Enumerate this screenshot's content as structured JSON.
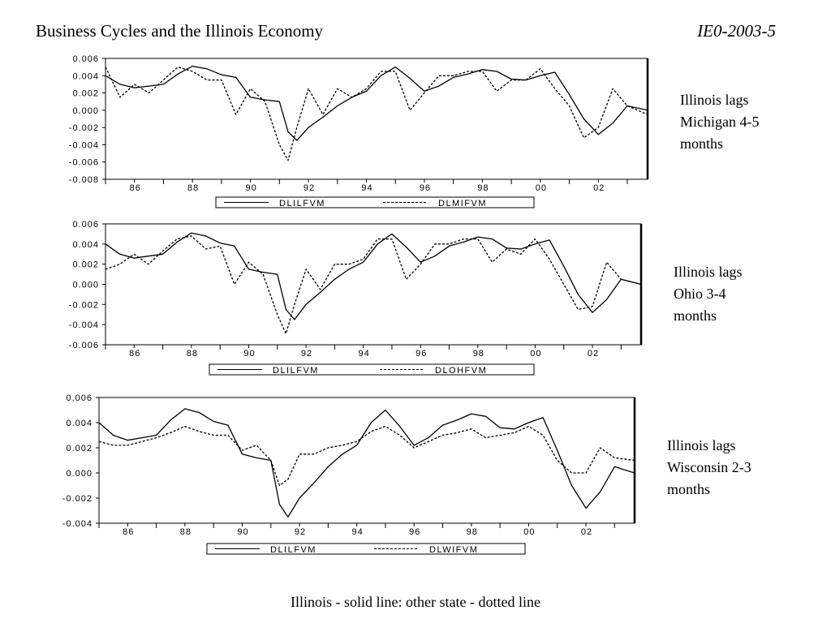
{
  "header": {
    "title": "Business Cycles and the Illinois Economy",
    "code": "IE0-2003-5"
  },
  "footer": {
    "caption": "Illinois - solid line: other state - dotted line"
  },
  "notes": [
    [
      "Illinois lags",
      "Michigan 4-5",
      "months"
    ],
    [
      "Illinois lags",
      "Ohio 3-4",
      "months"
    ],
    [
      "Illinois lags",
      "Wisconsin 2-3",
      "months"
    ]
  ],
  "chart_data": [
    {
      "type": "line",
      "x_tick_labels": [
        "86",
        "88",
        "90",
        "92",
        "94",
        "96",
        "98",
        "00",
        "02"
      ],
      "x_ticks": [
        1986,
        1988,
        1990,
        1992,
        1994,
        1996,
        1998,
        2000,
        2002
      ],
      "xlim": [
        1985.0,
        2003.7
      ],
      "ylim": [
        -0.008,
        0.006
      ],
      "y_ticks": [
        0.006,
        0.004,
        0.002,
        0.0,
        -0.002,
        -0.004,
        -0.006,
        -0.008
      ],
      "y_tick_labels": [
        "0.006",
        "0.004",
        "0.002",
        "0.000",
        "-0.002",
        "-0.004",
        "-0.006",
        "-0.008"
      ],
      "legend_position": "bottom",
      "series": [
        {
          "name": "DLILFVM",
          "style": "solid",
          "x": [
            1985.0,
            1985.5,
            1986.0,
            1986.5,
            1987.0,
            1987.5,
            1988.0,
            1988.5,
            1989.0,
            1989.5,
            1990.0,
            1990.5,
            1991.0,
            1991.3,
            1991.6,
            1992.0,
            1992.5,
            1993.0,
            1993.5,
            1994.0,
            1994.5,
            1995.0,
            1995.5,
            1996.0,
            1996.5,
            1997.0,
            1997.5,
            1998.0,
            1998.5,
            1999.0,
            1999.5,
            2000.0,
            2000.5,
            2001.0,
            2001.5,
            2002.0,
            2002.5,
            2003.0,
            2003.7
          ],
          "y": [
            0.004,
            0.003,
            0.0026,
            0.0028,
            0.003,
            0.0042,
            0.0051,
            0.0048,
            0.0041,
            0.0038,
            0.0015,
            0.0012,
            0.001,
            -0.0025,
            -0.0035,
            -0.002,
            -0.0008,
            0.0005,
            0.0015,
            0.0022,
            0.004,
            0.005,
            0.0037,
            0.0022,
            0.0028,
            0.0038,
            0.0042,
            0.0047,
            0.0045,
            0.0036,
            0.0035,
            0.004,
            0.0044,
            0.0018,
            -0.001,
            -0.0028,
            -0.0015,
            0.0005,
            0.0
          ]
        },
        {
          "name": "DLMIFVM",
          "style": "dotted",
          "x": [
            1985.0,
            1985.5,
            1986.0,
            1986.5,
            1987.0,
            1987.5,
            1988.0,
            1988.5,
            1989.0,
            1989.5,
            1990.0,
            1990.5,
            1991.0,
            1991.3,
            1991.6,
            1992.0,
            1992.5,
            1993.0,
            1993.5,
            1994.0,
            1994.5,
            1995.0,
            1995.5,
            1996.0,
            1996.5,
            1997.0,
            1997.5,
            1998.0,
            1998.5,
            1999.0,
            1999.5,
            2000.0,
            2000.5,
            2001.0,
            2001.5,
            2002.0,
            2002.5,
            2003.0,
            2003.7
          ],
          "y": [
            0.005,
            0.0015,
            0.003,
            0.002,
            0.0035,
            0.005,
            0.0045,
            0.0035,
            0.0035,
            -0.0005,
            0.0025,
            0.001,
            -0.004,
            -0.0058,
            -0.002,
            0.0025,
            -0.0005,
            0.0025,
            0.0015,
            0.0025,
            0.0045,
            0.0045,
            0.0,
            0.002,
            0.004,
            0.004,
            0.0045,
            0.0045,
            0.0022,
            0.0035,
            0.0035,
            0.0048,
            0.0025,
            0.0005,
            -0.0032,
            -0.002,
            0.0025,
            0.0005,
            -0.0005
          ]
        }
      ]
    },
    {
      "type": "line",
      "x_tick_labels": [
        "86",
        "88",
        "90",
        "92",
        "94",
        "96",
        "98",
        "00",
        "02"
      ],
      "x_ticks": [
        1986,
        1988,
        1990,
        1992,
        1994,
        1996,
        1998,
        2000,
        2002
      ],
      "xlim": [
        1985.0,
        2003.7
      ],
      "ylim": [
        -0.006,
        0.006
      ],
      "y_ticks": [
        0.006,
        0.004,
        0.002,
        0.0,
        -0.002,
        -0.004,
        -0.006
      ],
      "y_tick_labels": [
        "0.006",
        "0.004",
        "0.002",
        "0.000",
        "-0.002",
        "-0.004",
        "-0.006"
      ],
      "legend_position": "bottom",
      "series": [
        {
          "name": "DLILFVM",
          "style": "solid",
          "x": [
            1985.0,
            1985.5,
            1986.0,
            1986.5,
            1987.0,
            1987.5,
            1988.0,
            1988.5,
            1989.0,
            1989.5,
            1990.0,
            1990.5,
            1991.0,
            1991.3,
            1991.6,
            1992.0,
            1992.5,
            1993.0,
            1993.5,
            1994.0,
            1994.5,
            1995.0,
            1995.5,
            1996.0,
            1996.5,
            1997.0,
            1997.5,
            1998.0,
            1998.5,
            1999.0,
            1999.5,
            2000.0,
            2000.5,
            2001.0,
            2001.5,
            2002.0,
            2002.5,
            2003.0,
            2003.7
          ],
          "y": [
            0.004,
            0.003,
            0.0026,
            0.0028,
            0.003,
            0.0042,
            0.0051,
            0.0048,
            0.0041,
            0.0038,
            0.0015,
            0.0012,
            0.001,
            -0.0025,
            -0.0035,
            -0.002,
            -0.0008,
            0.0005,
            0.0015,
            0.0022,
            0.004,
            0.005,
            0.0037,
            0.0022,
            0.0028,
            0.0038,
            0.0042,
            0.0047,
            0.0045,
            0.0036,
            0.0035,
            0.004,
            0.0044,
            0.0018,
            -0.001,
            -0.0028,
            -0.0015,
            0.0005,
            0.0
          ]
        },
        {
          "name": "DLOHFVM",
          "style": "dotted",
          "x": [
            1985.0,
            1985.5,
            1986.0,
            1986.5,
            1987.0,
            1987.5,
            1988.0,
            1988.5,
            1989.0,
            1989.5,
            1990.0,
            1990.5,
            1991.0,
            1991.3,
            1991.6,
            1992.0,
            1992.5,
            1993.0,
            1993.5,
            1994.0,
            1994.5,
            1995.0,
            1995.5,
            1996.0,
            1996.5,
            1997.0,
            1997.5,
            1998.0,
            1998.5,
            1999.0,
            1999.5,
            2000.0,
            2000.5,
            2001.0,
            2001.5,
            2002.0,
            2002.5,
            2003.0,
            2003.7
          ],
          "y": [
            0.0015,
            0.002,
            0.003,
            0.002,
            0.0033,
            0.0045,
            0.0048,
            0.0035,
            0.0038,
            0.0,
            0.0022,
            0.001,
            -0.003,
            -0.0049,
            -0.002,
            0.0015,
            -0.0005,
            0.002,
            0.002,
            0.0025,
            0.0045,
            0.0045,
            0.0005,
            0.002,
            0.004,
            0.004,
            0.0045,
            0.0045,
            0.0022,
            0.0035,
            0.003,
            0.0045,
            0.0025,
            0.0,
            -0.0025,
            -0.0022,
            0.0022,
            0.0005,
            0.0
          ]
        }
      ]
    },
    {
      "type": "line",
      "x_tick_labels": [
        "86",
        "88",
        "90",
        "92",
        "94",
        "96",
        "98",
        "00",
        "02"
      ],
      "x_ticks": [
        1986,
        1988,
        1990,
        1992,
        1994,
        1996,
        1998,
        2000,
        2002
      ],
      "xlim": [
        1985.0,
        2003.7
      ],
      "ylim": [
        -0.004,
        0.006
      ],
      "y_ticks": [
        0.006,
        0.004,
        0.002,
        0.0,
        -0.002,
        -0.004
      ],
      "y_tick_labels": [
        "0.006",
        "0.004",
        "0.002",
        "0.000",
        "-0.002",
        "-0.004"
      ],
      "legend_position": "bottom",
      "series": [
        {
          "name": "DLILFVM",
          "style": "solid",
          "x": [
            1985.0,
            1985.5,
            1986.0,
            1986.5,
            1987.0,
            1987.5,
            1988.0,
            1988.5,
            1989.0,
            1989.5,
            1990.0,
            1990.5,
            1991.0,
            1991.3,
            1991.6,
            1992.0,
            1992.5,
            1993.0,
            1993.5,
            1994.0,
            1994.5,
            1995.0,
            1995.5,
            1996.0,
            1996.5,
            1997.0,
            1997.5,
            1998.0,
            1998.5,
            1999.0,
            1999.5,
            2000.0,
            2000.5,
            2001.0,
            2001.5,
            2002.0,
            2002.5,
            2003.0,
            2003.7
          ],
          "y": [
            0.004,
            0.003,
            0.0026,
            0.0028,
            0.003,
            0.0042,
            0.0051,
            0.0048,
            0.0041,
            0.0038,
            0.0015,
            0.0012,
            0.001,
            -0.0025,
            -0.0035,
            -0.002,
            -0.0008,
            0.0005,
            0.0015,
            0.0022,
            0.004,
            0.005,
            0.0037,
            0.0022,
            0.0028,
            0.0038,
            0.0042,
            0.0047,
            0.0045,
            0.0036,
            0.0035,
            0.004,
            0.0044,
            0.0018,
            -0.001,
            -0.0028,
            -0.0015,
            0.0005,
            0.0
          ]
        },
        {
          "name": "DLWIFVM",
          "style": "dotted",
          "x": [
            1985.0,
            1985.5,
            1986.0,
            1986.5,
            1987.0,
            1987.5,
            1988.0,
            1988.5,
            1989.0,
            1989.5,
            1990.0,
            1990.5,
            1991.0,
            1991.3,
            1991.6,
            1992.0,
            1992.5,
            1993.0,
            1993.5,
            1994.0,
            1994.5,
            1995.0,
            1995.5,
            1996.0,
            1996.5,
            1997.0,
            1997.5,
            1998.0,
            1998.5,
            1999.0,
            1999.5,
            2000.0,
            2000.5,
            2001.0,
            2001.5,
            2002.0,
            2002.5,
            2003.0,
            2003.7
          ],
          "y": [
            0.0025,
            0.0022,
            0.0022,
            0.0025,
            0.0028,
            0.0032,
            0.0037,
            0.0033,
            0.003,
            0.003,
            0.0018,
            0.0022,
            0.001,
            -0.001,
            -0.0005,
            0.0015,
            0.0015,
            0.002,
            0.0022,
            0.0025,
            0.0033,
            0.0037,
            0.003,
            0.002,
            0.0025,
            0.003,
            0.0032,
            0.0035,
            0.0028,
            0.003,
            0.0032,
            0.0037,
            0.003,
            0.001,
            0.0,
            0.0,
            0.002,
            0.0012,
            0.001
          ]
        }
      ]
    }
  ]
}
